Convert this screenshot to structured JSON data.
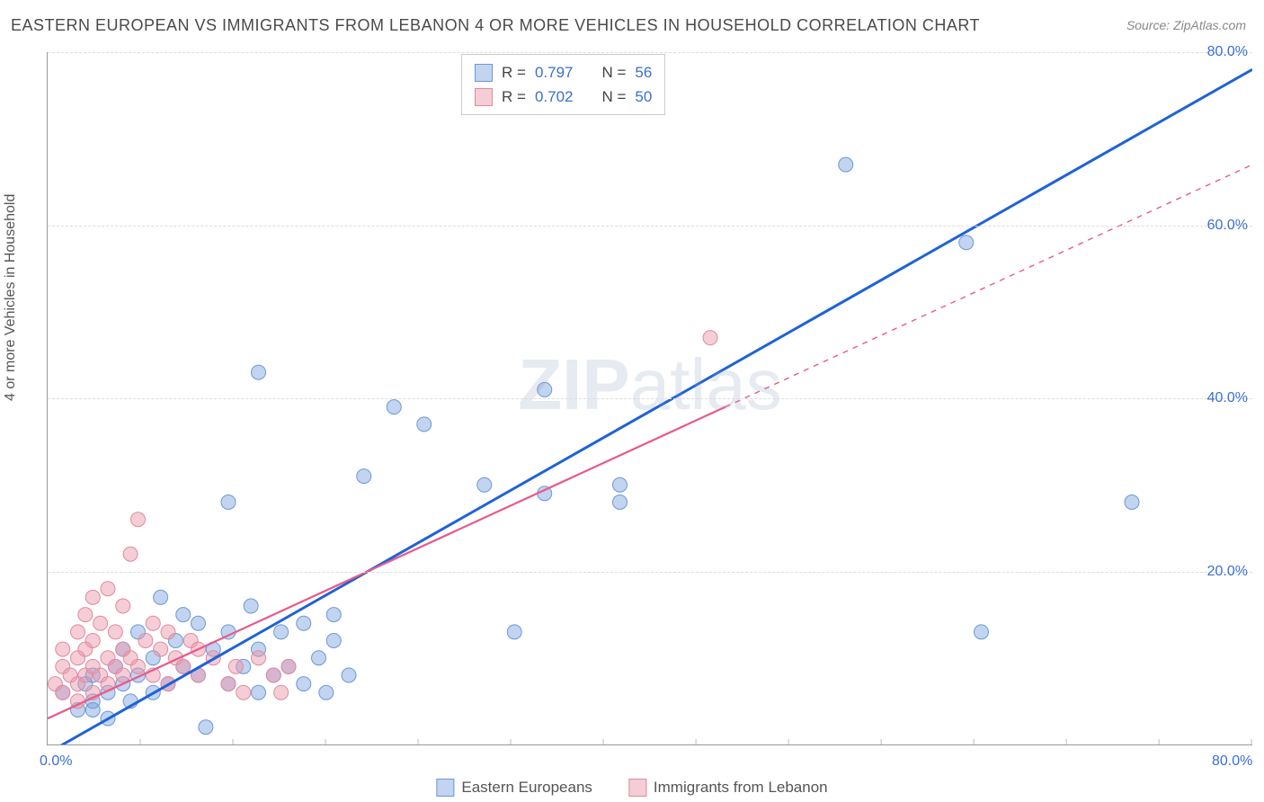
{
  "title": "EASTERN EUROPEAN VS IMMIGRANTS FROM LEBANON 4 OR MORE VEHICLES IN HOUSEHOLD CORRELATION CHART",
  "source": "Source: ZipAtlas.com",
  "y_axis_title": "4 or more Vehicles in Household",
  "watermark_bold": "ZIP",
  "watermark_light": "atlas",
  "chart": {
    "type": "scatter",
    "xlim": [
      0,
      80
    ],
    "ylim": [
      0,
      80
    ],
    "x_tick_major": [
      0,
      80
    ],
    "x_tick_minor_step": 6.15,
    "y_ticks": [
      20,
      40,
      60,
      80
    ],
    "x_tick_labels": {
      "0": "0.0%",
      "80": "80.0%"
    },
    "y_tick_labels": {
      "20": "20.0%",
      "40": "40.0%",
      "60": "60.0%",
      "80": "80.0%"
    },
    "grid_color": "#dddddd",
    "axis_color": "#999999",
    "tick_label_color": "#3b6fd1",
    "background_color": "#ffffff"
  },
  "series": [
    {
      "name": "Eastern Europeans",
      "color_fill": "rgba(120,160,220,0.45)",
      "color_stroke": "#6a99d8",
      "marker_radius": 8,
      "trend_color": "#1f62d6",
      "trend_width": 3,
      "trend_dash": "none",
      "trend": {
        "x1": 0,
        "y1": -1,
        "x2": 80,
        "y2": 78
      },
      "points": [
        [
          1,
          6
        ],
        [
          2,
          4
        ],
        [
          2.5,
          7
        ],
        [
          3,
          5
        ],
        [
          3,
          8
        ],
        [
          4,
          6
        ],
        [
          4.5,
          9
        ],
        [
          5,
          7
        ],
        [
          5,
          11
        ],
        [
          5.5,
          5
        ],
        [
          6,
          8
        ],
        [
          6,
          13
        ],
        [
          7,
          6
        ],
        [
          7,
          10
        ],
        [
          7.5,
          17
        ],
        [
          8,
          7
        ],
        [
          8.5,
          12
        ],
        [
          9,
          9
        ],
        [
          9,
          15
        ],
        [
          10,
          8
        ],
        [
          10,
          14
        ],
        [
          10.5,
          2
        ],
        [
          11,
          11
        ],
        [
          12,
          7
        ],
        [
          12,
          13
        ],
        [
          13,
          9
        ],
        [
          13.5,
          16
        ],
        [
          14,
          6
        ],
        [
          14,
          11
        ],
        [
          15,
          8
        ],
        [
          15.5,
          13
        ],
        [
          16,
          9
        ],
        [
          17,
          7
        ],
        [
          17,
          14
        ],
        [
          18,
          10
        ],
        [
          18.5,
          6
        ],
        [
          19,
          12
        ],
        [
          19,
          15
        ],
        [
          20,
          8
        ],
        [
          12,
          28
        ],
        [
          14,
          43
        ],
        [
          21,
          31
        ],
        [
          23,
          39
        ],
        [
          25,
          37
        ],
        [
          29,
          30
        ],
        [
          33,
          29
        ],
        [
          33,
          41
        ],
        [
          31,
          13
        ],
        [
          38,
          30
        ],
        [
          38,
          28
        ],
        [
          61,
          58
        ],
        [
          53,
          67
        ],
        [
          72,
          28
        ],
        [
          62,
          13
        ],
        [
          4,
          3
        ],
        [
          3,
          4
        ]
      ]
    },
    {
      "name": "Immigrants from Lebanon",
      "color_fill": "rgba(235,150,170,0.48)",
      "color_stroke": "#e08aa0",
      "marker_radius": 8,
      "trend_color": "#e85a8a",
      "trend_width": 2.2,
      "trend_dash_solid_end": 45,
      "trend": {
        "x1": 0,
        "y1": 3,
        "x2": 80,
        "y2": 67
      },
      "points": [
        [
          0.5,
          7
        ],
        [
          1,
          6
        ],
        [
          1,
          9
        ],
        [
          1.5,
          8
        ],
        [
          2,
          7
        ],
        [
          2,
          10
        ],
        [
          2,
          13
        ],
        [
          2.5,
          8
        ],
        [
          2.5,
          11
        ],
        [
          2.5,
          15
        ],
        [
          3,
          9
        ],
        [
          3,
          12
        ],
        [
          3,
          17
        ],
        [
          3.5,
          8
        ],
        [
          3.5,
          14
        ],
        [
          4,
          10
        ],
        [
          4,
          18
        ],
        [
          4.5,
          9
        ],
        [
          4.5,
          13
        ],
        [
          5,
          8
        ],
        [
          5,
          11
        ],
        [
          5,
          16
        ],
        [
          5.5,
          10
        ],
        [
          5.5,
          22
        ],
        [
          6,
          9
        ],
        [
          6,
          26
        ],
        [
          6.5,
          12
        ],
        [
          7,
          8
        ],
        [
          7,
          14
        ],
        [
          7.5,
          11
        ],
        [
          8,
          7
        ],
        [
          8,
          13
        ],
        [
          8.5,
          10
        ],
        [
          9,
          9
        ],
        [
          9.5,
          12
        ],
        [
          10,
          8
        ],
        [
          10,
          11
        ],
        [
          11,
          10
        ],
        [
          12,
          7
        ],
        [
          12.5,
          9
        ],
        [
          13,
          6
        ],
        [
          14,
          10
        ],
        [
          15,
          8
        ],
        [
          15.5,
          6
        ],
        [
          16,
          9
        ],
        [
          2,
          5
        ],
        [
          3,
          6
        ],
        [
          4,
          7
        ],
        [
          1,
          11
        ],
        [
          44,
          47
        ]
      ]
    }
  ],
  "stats_box": {
    "rows": [
      {
        "swatch_fill": "rgba(120,160,220,0.45)",
        "swatch_stroke": "#6a99d8",
        "r_label": "R =",
        "r_val": "0.797",
        "n_label": "N =",
        "n_val": "56"
      },
      {
        "swatch_fill": "rgba(235,150,170,0.48)",
        "swatch_stroke": "#e08aa0",
        "r_label": "R =",
        "r_val": "0.702",
        "n_label": "N =",
        "n_val": "50"
      }
    ]
  },
  "bottom_legend": [
    {
      "swatch_fill": "rgba(120,160,220,0.45)",
      "swatch_stroke": "#6a99d8",
      "label": "Eastern Europeans"
    },
    {
      "swatch_fill": "rgba(235,150,170,0.48)",
      "swatch_stroke": "#e08aa0",
      "label": "Immigrants from Lebanon"
    }
  ]
}
